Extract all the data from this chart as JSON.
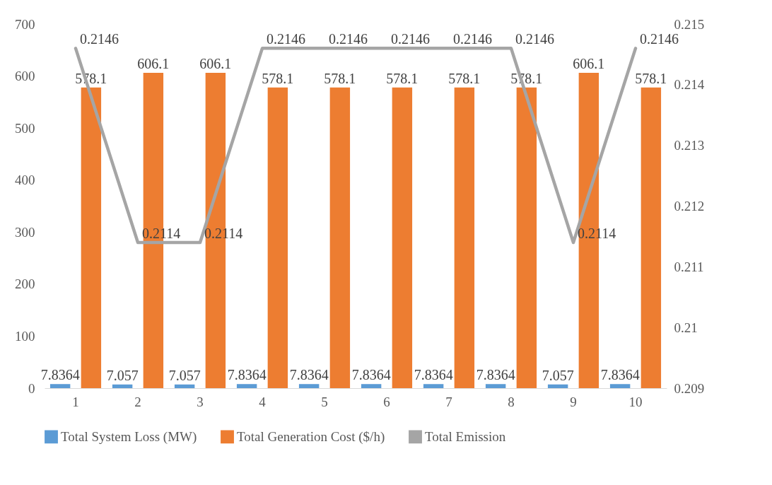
{
  "chart_data": {
    "type": "bar",
    "categories": [
      "1",
      "2",
      "3",
      "4",
      "5",
      "6",
      "7",
      "8",
      "9",
      "10"
    ],
    "series": [
      {
        "name": "Total System Loss (MW)",
        "color": "#5b9bd5",
        "values": [
          7.8364,
          7.057,
          7.057,
          7.8364,
          7.8364,
          7.8364,
          7.8364,
          7.8364,
          7.057,
          7.8364
        ]
      },
      {
        "name": "Total Generation Cost ($/h)",
        "color": "#ed7d31",
        "values": [
          578.1,
          606.1,
          606.1,
          578.1,
          578.1,
          578.1,
          578.1,
          578.1,
          606.1,
          578.1
        ]
      },
      {
        "name": "Total Emission",
        "color": "#a5a5a5",
        "type": "line",
        "axis": "y2",
        "values": [
          0.2146,
          0.2114,
          0.2114,
          0.2146,
          0.2146,
          0.2146,
          0.2146,
          0.2146,
          0.2114,
          0.2146
        ]
      }
    ],
    "ylim": [
      0,
      700
    ],
    "yticks": [
      0,
      100,
      200,
      300,
      400,
      500,
      600,
      700
    ],
    "y2lim": [
      0.209,
      0.215
    ],
    "y2ticks": [
      0.209,
      0.21,
      0.211,
      0.212,
      0.213,
      0.214,
      0.215
    ],
    "data_labels": true,
    "grid": false,
    "legend": "bottom",
    "marker": "none",
    "line_style": "solid"
  }
}
